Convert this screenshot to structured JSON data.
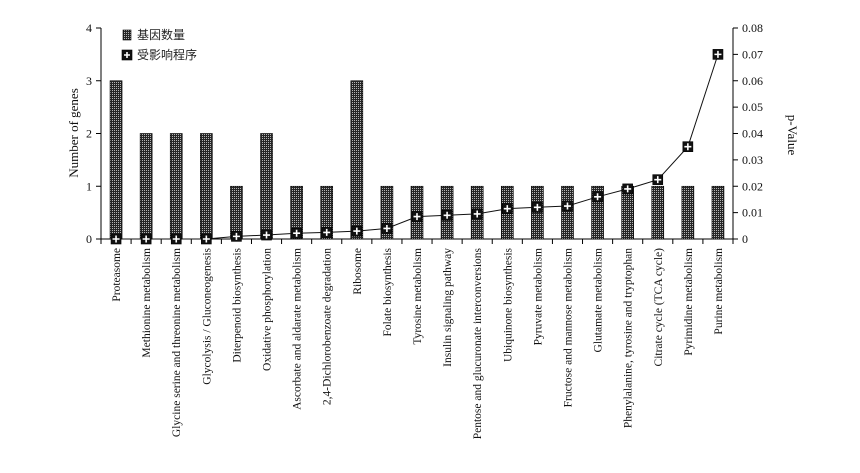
{
  "chart_data": {
    "type": "bar",
    "categories": [
      "Proteasome",
      "Methionine metabolism",
      "Glycine serine and threonine metabolism",
      "Glycolysis / Gluconeogenesis",
      "Diterpenoid biosynthesis",
      "Oxidative phosphorylation",
      "Ascorbate and aldarate metabolism",
      "2,4-Dichlorobenzoate degradation",
      "Ribosome",
      "Folate biosynthesis",
      "Tyrosine metabolism",
      "Insulin signaling pathway",
      "Pentose and glucuronate interconversions",
      "Ubiquinone biosynthesis",
      "Pyruvate metabolism",
      "Fructose and mannose metabolism",
      "Glutamate metabolism",
      "Phenylalanine, tyrosine and tryptophan",
      "Citrate cycle (TCA cycle)",
      "Pyrimidine metabolism",
      "Purine metabolism"
    ],
    "series": [
      {
        "name": "基因数量",
        "axis": "left",
        "kind": "bar",
        "values": [
          3,
          2,
          2,
          2,
          1,
          2,
          1,
          1,
          3,
          1,
          1,
          1,
          1,
          1,
          1,
          1,
          1,
          1,
          1,
          1,
          1
        ]
      },
      {
        "name": "受影响程序",
        "axis": "right",
        "kind": "line",
        "values": [
          0.0,
          0.0,
          0.0,
          0.0,
          0.001,
          0.0015,
          0.0022,
          0.0025,
          0.003,
          0.004,
          0.0085,
          0.009,
          0.0095,
          0.0115,
          0.012,
          0.0125,
          0.016,
          0.019,
          0.0225,
          0.035,
          0.07
        ]
      }
    ],
    "ylabel": "Number of genes",
    "y2label": "p-Value",
    "ylim": [
      0,
      4
    ],
    "y_ticks": [
      "0",
      "1",
      "2",
      "3",
      "4"
    ],
    "y2lim": [
      0,
      0.08
    ],
    "y2_ticks": [
      "0",
      "0.01",
      "0.02",
      "0.03",
      "0.04",
      "0.05",
      "0.06",
      "0.07",
      "0.08"
    ],
    "legend": "top-left",
    "grid": false,
    "colors": {
      "bar_fill": "#2a2a2a",
      "bar_dot": "#bdbdbd",
      "line": "#111111",
      "axis": "#000000"
    }
  }
}
